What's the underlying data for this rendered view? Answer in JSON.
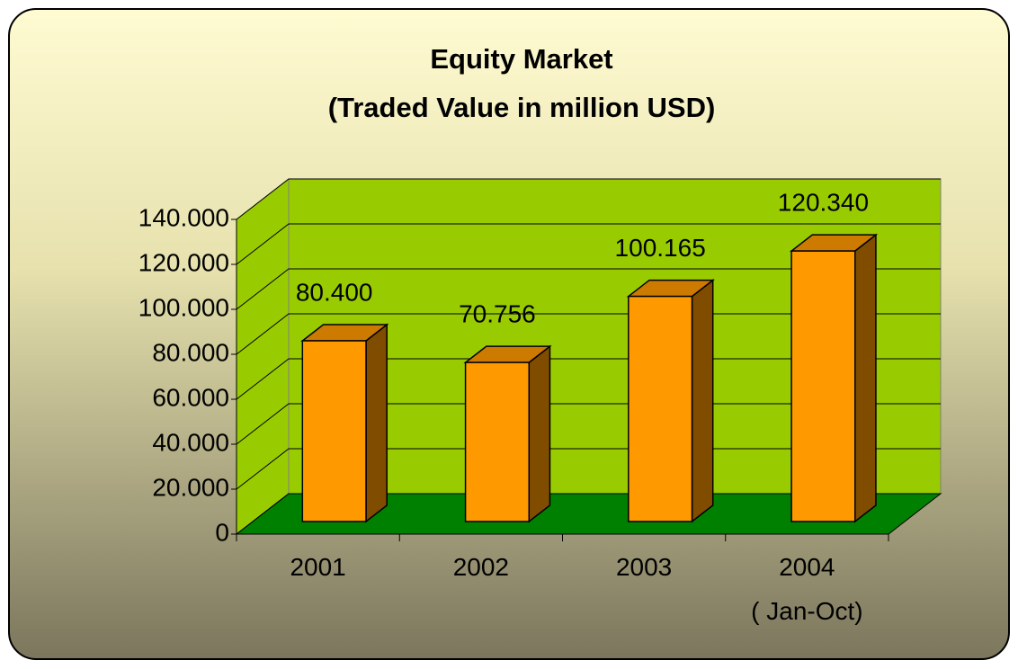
{
  "chart_data": {
    "type": "bar3d",
    "title": [
      "Equity Market",
      "(Traded Value in million USD)"
    ],
    "categories": [
      "2001",
      "2002",
      "2003",
      "2004\n( Jan-Oct)"
    ],
    "values": [
      80400,
      70756,
      100165,
      120340
    ],
    "value_labels": [
      "80.400",
      "70.756",
      "100.165",
      "120.340"
    ],
    "color": "#ff9900",
    "ylim": [
      0,
      140000
    ],
    "yticks": [
      0,
      {
        "value": 20000,
        "label": "20.000"
      },
      {
        "value": 40000,
        "label": "40.000"
      },
      {
        "value": 60000,
        "label": "60.000"
      },
      {
        "value": 80000,
        "label": "80.000"
      },
      {
        "value": 100000,
        "label": "100.000"
      },
      {
        "value": 120000,
        "label": "120.000"
      },
      {
        "value": 140000,
        "label": "140.000"
      }
    ],
    "grid": true
  }
}
